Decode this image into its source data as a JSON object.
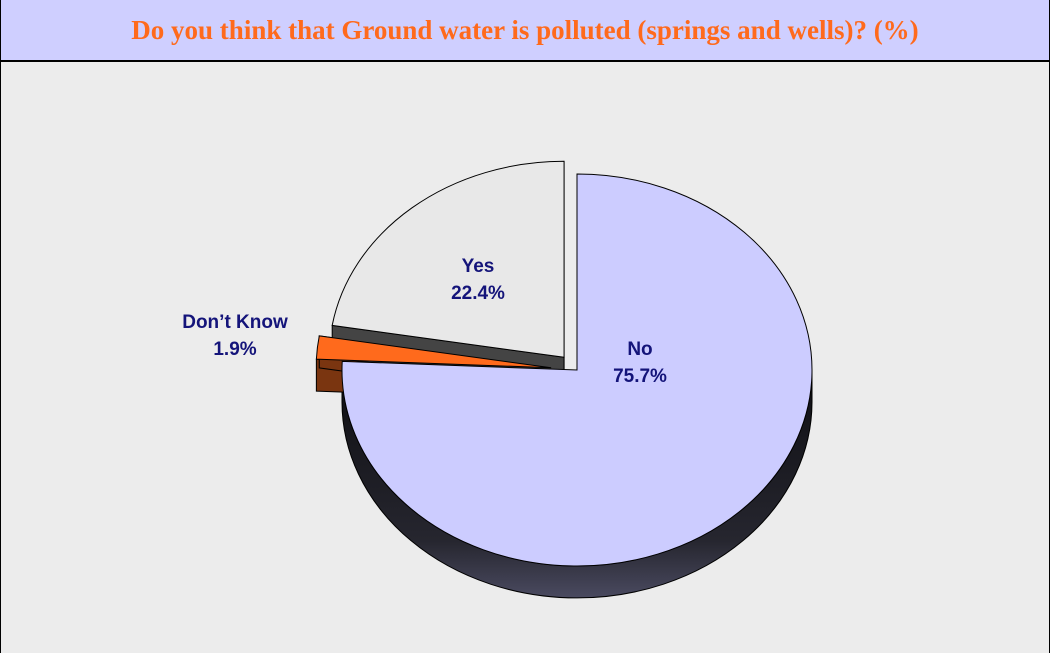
{
  "chart_data": {
    "type": "pie",
    "title": "Do you think that Ground water is polluted (springs and wells)? (%)",
    "legend": "none",
    "slices": [
      {
        "label": "No",
        "value": 75.7,
        "value_label": "75.7%",
        "color": "#ccccff",
        "side_color": "#1c1c26"
      },
      {
        "label": "Don’t Know",
        "value": 1.9,
        "value_label": "1.9%",
        "color": "#ff6a1c",
        "side_color": "#7a3510"
      },
      {
        "label": "Yes",
        "value": 22.4,
        "value_label": "22.4%",
        "color": "#e8e8e8",
        "side_color": "#444444"
      }
    ]
  },
  "colors": {
    "title_bar": "#cfcfff",
    "title_text": "#ff6a1c",
    "panel_background": "#ececec",
    "label_text": "#14147a"
  }
}
